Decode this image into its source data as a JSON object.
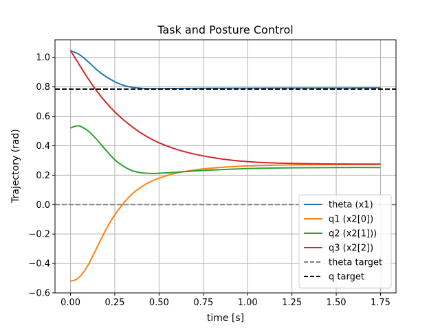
{
  "chart_data": {
    "type": "line",
    "title": "Task and Posture Control",
    "xlabel": "time [s]",
    "ylabel": "Trajectory (rad)",
    "xlim": [
      -0.0875,
      1.8375
    ],
    "ylim": [
      -0.6,
      1.12
    ],
    "xticks": [
      0.0,
      0.25,
      0.5,
      0.75,
      1.0,
      1.25,
      1.5,
      1.75
    ],
    "xtick_labels": [
      "0.00",
      "0.25",
      "0.50",
      "0.75",
      "1.00",
      "1.25",
      "1.50",
      "1.75"
    ],
    "yticks": [
      -0.6,
      -0.4,
      -0.2,
      0.0,
      0.2,
      0.4,
      0.6,
      0.8,
      1.0
    ],
    "ytick_labels": [
      "−0.6",
      "−0.4",
      "−0.2",
      "0.0",
      "0.2",
      "0.4",
      "0.6",
      "0.8",
      "1.0"
    ],
    "grid": true,
    "legend_position": "lower-right",
    "series": [
      {
        "name": "theta (x1)",
        "color": "#1f77b4",
        "style": "solid",
        "x": [
          0.0,
          0.05,
          0.1,
          0.15,
          0.2,
          0.25,
          0.3,
          0.35,
          0.4,
          0.45,
          0.5,
          0.6,
          0.75,
          1.0,
          1.25,
          1.5,
          1.75
        ],
        "y": [
          1.047,
          1.02,
          0.97,
          0.915,
          0.87,
          0.835,
          0.81,
          0.797,
          0.79,
          0.788,
          0.788,
          0.789,
          0.79,
          0.791,
          0.792,
          0.792,
          0.793
        ]
      },
      {
        "name": "q1 (x2[0])",
        "color": "#ff7f0e",
        "style": "solid",
        "x": [
          0.0,
          0.03,
          0.06,
          0.1,
          0.15,
          0.2,
          0.25,
          0.3,
          0.35,
          0.4,
          0.45,
          0.5,
          0.6,
          0.7,
          0.75,
          0.85,
          1.0,
          1.25,
          1.5,
          1.75
        ],
        "y": [
          -0.52,
          -0.51,
          -0.48,
          -0.41,
          -0.29,
          -0.17,
          -0.07,
          0.01,
          0.075,
          0.12,
          0.155,
          0.18,
          0.215,
          0.235,
          0.243,
          0.253,
          0.263,
          0.27,
          0.272,
          0.273
        ]
      },
      {
        "name": "q2 (x2[1]))",
        "color": "#2ca02c",
        "style": "solid",
        "x": [
          0.0,
          0.02,
          0.04,
          0.06,
          0.1,
          0.15,
          0.2,
          0.25,
          0.3,
          0.35,
          0.4,
          0.45,
          0.5,
          0.6,
          0.75,
          1.0,
          1.25,
          1.5,
          1.75
        ],
        "y": [
          0.52,
          0.53,
          0.535,
          0.53,
          0.5,
          0.44,
          0.37,
          0.305,
          0.26,
          0.23,
          0.216,
          0.212,
          0.213,
          0.22,
          0.232,
          0.245,
          0.25,
          0.252,
          0.252
        ]
      },
      {
        "name": "q3 (x2[2])",
        "color": "#d62728",
        "style": "solid",
        "x": [
          0.0,
          0.05,
          0.1,
          0.15,
          0.2,
          0.25,
          0.3,
          0.35,
          0.4,
          0.45,
          0.5,
          0.6,
          0.7,
          0.8,
          0.9,
          1.0,
          1.1,
          1.25,
          1.5,
          1.75
        ],
        "y": [
          1.047,
          0.95,
          0.855,
          0.77,
          0.695,
          0.63,
          0.575,
          0.527,
          0.485,
          0.45,
          0.42,
          0.375,
          0.343,
          0.32,
          0.303,
          0.292,
          0.285,
          0.28,
          0.276,
          0.275
        ]
      },
      {
        "name": "theta target",
        "color": "#808080",
        "style": "dashed",
        "y_const": 0.0
      },
      {
        "name": "q target",
        "color": "#000000",
        "style": "dashed",
        "y_const": 0.785
      }
    ]
  }
}
